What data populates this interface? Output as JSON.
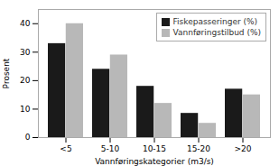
{
  "chart_data": {
    "type": "bar",
    "categories": [
      "<5",
      "5-10",
      "10-15",
      "15-20",
      ">20"
    ],
    "series": [
      {
        "name": "Fiskepasseringer (%)",
        "color": "#1a1a1a",
        "values": [
          33,
          24,
          18,
          8.5,
          17
        ]
      },
      {
        "name": "Vannføringstilbud (%)",
        "color": "#b8b8b8",
        "values": [
          40,
          29,
          12,
          5,
          15
        ]
      }
    ],
    "xlabel": "Vannføringskategorier (m3/s)",
    "ylabel": "Prosent",
    "ylim": [
      0,
      45
    ],
    "yticks": [
      0,
      10,
      20,
      30,
      40
    ],
    "legend": "upper right",
    "grid": false
  }
}
